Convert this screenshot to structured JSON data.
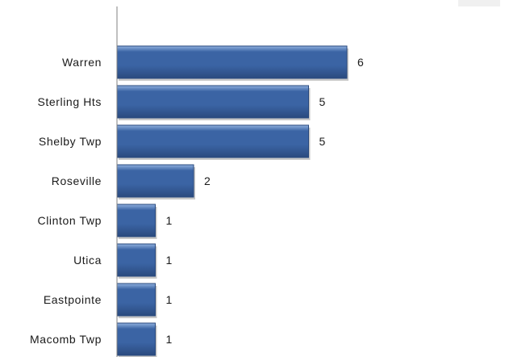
{
  "chart_data": {
    "type": "bar",
    "orientation": "horizontal",
    "categories": [
      "Warren",
      "Sterling Hts",
      "Shelby Twp",
      "Roseville",
      "Clinton Twp",
      "Utica",
      "Eastpointe",
      "Macomb Twp"
    ],
    "values": [
      6,
      5,
      5,
      2,
      1,
      1,
      1,
      1
    ],
    "title": "",
    "xlabel": "",
    "ylabel": "",
    "xlim": [
      0,
      6
    ],
    "grid": false,
    "legend": "none",
    "colors": {
      "bar_fill": "#3b64a4",
      "bar_edge": "#2a4a7e",
      "bar_highlight": "#8fb0de",
      "axis": "#808080",
      "text": "#1a1a1a"
    }
  }
}
